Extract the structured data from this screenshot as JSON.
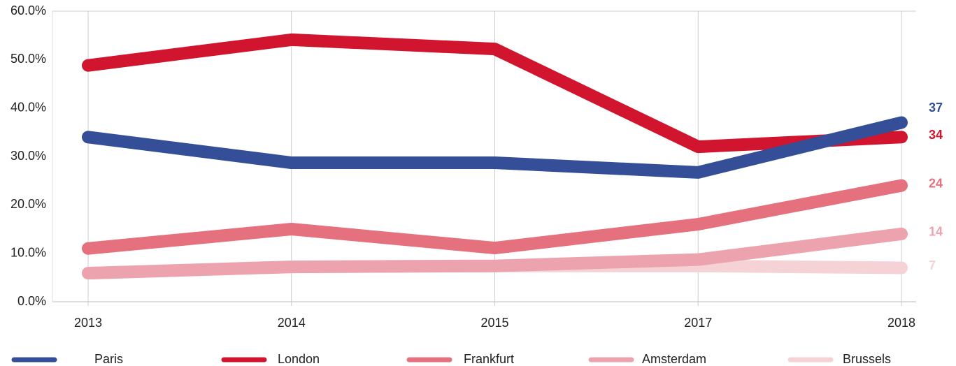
{
  "chart_data": {
    "type": "line",
    "categories": [
      "2013",
      "2014",
      "2015",
      "2017",
      "2018"
    ],
    "series": [
      {
        "name": "Paris",
        "color": "#344e97",
        "values": [
          34,
          28.7,
          28.7,
          26.7,
          37
        ]
      },
      {
        "name": "London",
        "color": "#d2152e",
        "values": [
          48.8,
          54.1,
          52.2,
          32,
          34
        ]
      },
      {
        "name": "Frankfurt",
        "color": "#e5707e",
        "values": [
          11,
          15,
          11.1,
          16,
          24
        ]
      },
      {
        "name": "Amsterdam",
        "color": "#eca3ad",
        "values": [
          5.9,
          7.2,
          7.4,
          8.7,
          14
        ]
      },
      {
        "name": "Brussels",
        "color": "#f5d2d6",
        "values": [
          5.9,
          7.2,
          7.4,
          7.4,
          7
        ]
      }
    ],
    "ylim": [
      0,
      60
    ],
    "yticks": [
      {
        "value": 0,
        "label": "0.0%"
      },
      {
        "value": 10,
        "label": "10.0%"
      },
      {
        "value": 20,
        "label": "20.0%"
      },
      {
        "value": 30,
        "label": "30.0%"
      },
      {
        "value": 40,
        "label": "40.0%"
      },
      {
        "value": 50,
        "label": "50.0%"
      },
      {
        "value": 60,
        "label": "60.0%"
      }
    ],
    "legend": "bottom"
  }
}
